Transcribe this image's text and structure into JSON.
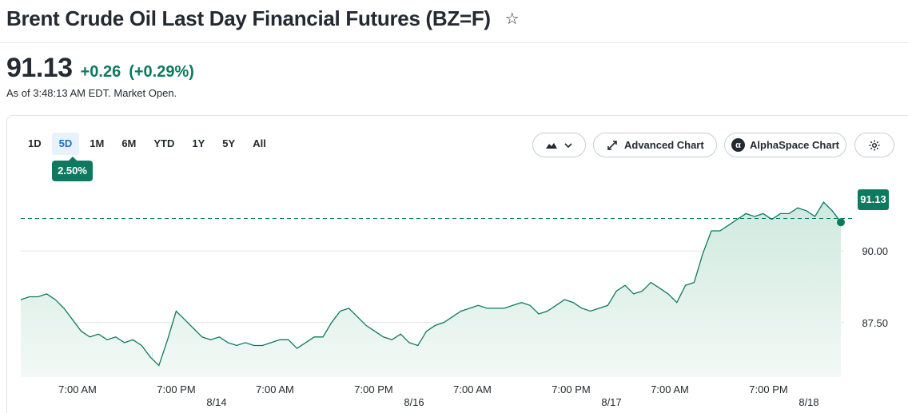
{
  "header": {
    "title": "Brent Crude Oil Last Day Financial Futures (BZ=F)",
    "star_icon": "star-outline-icon"
  },
  "quote": {
    "price": "91.13",
    "change": "+0.26",
    "change_percent": "(+0.29%)",
    "as_of": "As of 3:48:13 AM EDT. Market Open.",
    "positive_color": "#0d7a5f"
  },
  "toolbar": {
    "ranges": [
      "1D",
      "5D",
      "1M",
      "6M",
      "YTD",
      "1Y",
      "5Y",
      "All"
    ],
    "selected_range": "5D",
    "range_change_badge": "2.50%",
    "chart_type_icon": "mountain-chart-icon",
    "chevron_icon": "chevron-down-icon",
    "advanced_chart_label": "Advanced Chart",
    "advanced_chart_icon": "expand-arrows-icon",
    "alphaspace_label": "AlphaSpace Chart",
    "alphaspace_icon": "alpha-logo-icon",
    "settings_icon": "gear-icon"
  },
  "chart_data": {
    "type": "area",
    "current_price_label": "91.13",
    "reference_price": 91.13,
    "ylim": [
      85.6,
      92.9
    ],
    "yticks": [
      {
        "label": "90.00",
        "value": 90.0
      },
      {
        "label": "87.50",
        "value": 87.5
      }
    ],
    "x_tick_labels": [
      "7:00 AM",
      "7:00 PM",
      "7:00 AM",
      "7:00 PM",
      "7:00 AM",
      "7:00 PM",
      "7:00 AM",
      "7:00 PM"
    ],
    "date_labels": [
      "8/14",
      "8/16",
      "8/17",
      "8/18"
    ],
    "line_color": "#0d7a5f",
    "fill_color": "#e3f2ec",
    "series": [
      {
        "values": [
          88.3,
          88.4,
          88.4,
          88.5,
          88.3,
          88.0,
          87.6,
          87.2,
          87.0,
          87.1,
          86.9,
          87.0,
          86.8,
          86.9,
          86.7,
          86.3,
          86.0,
          86.9,
          87.9,
          87.6,
          87.3,
          87.0,
          86.9,
          87.0,
          86.8,
          86.7,
          86.8,
          86.7,
          86.7,
          86.8,
          86.9,
          86.9,
          86.6,
          86.8,
          87.0,
          87.0,
          87.5,
          87.9,
          88.0,
          87.7,
          87.4,
          87.2,
          87.0,
          86.9,
          87.1,
          86.8,
          86.7,
          87.2,
          87.4,
          87.5,
          87.7,
          87.9,
          88.0,
          88.1,
          88.0,
          88.0,
          88.0,
          88.1,
          88.2,
          88.1,
          87.8,
          87.9,
          88.1,
          88.3,
          88.2,
          88.0,
          87.9,
          88.0,
          88.1,
          88.6,
          88.8,
          88.5,
          88.6,
          88.9,
          88.7,
          88.5,
          88.2,
          88.8,
          88.9,
          89.9,
          90.7,
          90.7,
          90.9,
          91.1,
          91.3,
          91.2,
          91.3,
          91.1,
          91.3,
          91.3,
          91.5,
          91.4,
          91.2,
          91.7,
          91.4,
          91.0
        ]
      }
    ]
  }
}
